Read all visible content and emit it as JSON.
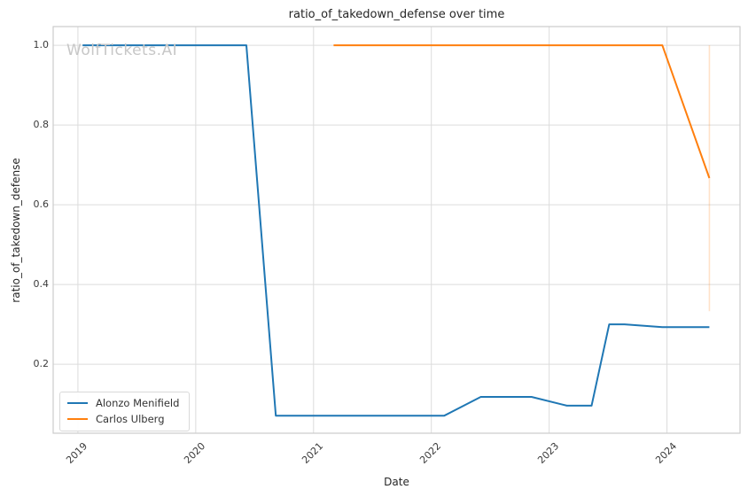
{
  "watermark": "WolfTickets.AI",
  "chart_data": {
    "type": "line",
    "title": "ratio_of_takedown_defense over time",
    "xlabel": "Date",
    "ylabel": "ratio_of_takedown_defense",
    "x_tick_labels": [
      "2019",
      "2020",
      "2021",
      "2022",
      "2023",
      "2024"
    ],
    "x_tick_values": [
      2019,
      2020,
      2021,
      2022,
      2023,
      2024
    ],
    "y_tick_labels": [
      "0.2",
      "0.4",
      "0.6",
      "0.8",
      "1.0"
    ],
    "y_tick_values": [
      0.2,
      0.4,
      0.6,
      0.8,
      1.0
    ],
    "xlim": [
      2018.79,
      2024.62
    ],
    "ylim": [
      0.027,
      1.047
    ],
    "grid": true,
    "background": "#ffffff",
    "grid_color": "#dcdcdc",
    "spine_color": "#cccccc",
    "legend": {
      "position": "lower-left",
      "entries": [
        "Alonzo Menifield",
        "Carlos Ulberg"
      ]
    },
    "series": [
      {
        "name": "Alonzo Menifield",
        "color": "#1f77b4",
        "x": [
          2019.04,
          2020.43,
          2020.68,
          2022.11,
          2022.42,
          2022.85,
          2023.15,
          2023.36,
          2023.51,
          2023.64,
          2023.96,
          2024.36
        ],
        "y": [
          1.0,
          1.0,
          0.071,
          0.071,
          0.118,
          0.118,
          0.096,
          0.096,
          0.3,
          0.3,
          0.293,
          0.293
        ]
      },
      {
        "name": "Carlos Ulberg",
        "color": "#ff7f0e",
        "x": [
          2021.17,
          2023.96,
          2024.36
        ],
        "y": [
          1.0,
          1.0,
          0.667
        ]
      }
    ],
    "annotations": [
      {
        "type": "vline",
        "x": 2024.36,
        "y_from": 0.333,
        "y_to": 1.0,
        "color": "#ff7f0e",
        "opacity": 0.22
      }
    ]
  }
}
